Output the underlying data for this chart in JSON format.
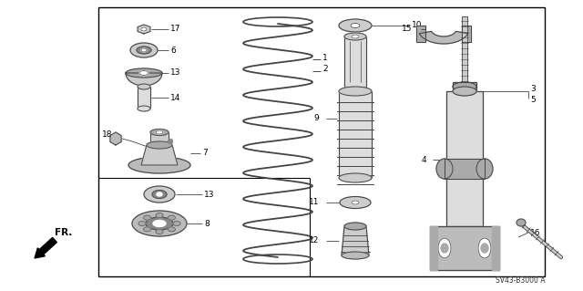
{
  "bg_color": "#ffffff",
  "border_color": "#000000",
  "line_color": "#444444",
  "text_color": "#000000",
  "diagram_id": "SV43-B3000 A",
  "fr_label": "FR.",
  "figsize": [
    6.4,
    3.19
  ],
  "dpi": 100
}
